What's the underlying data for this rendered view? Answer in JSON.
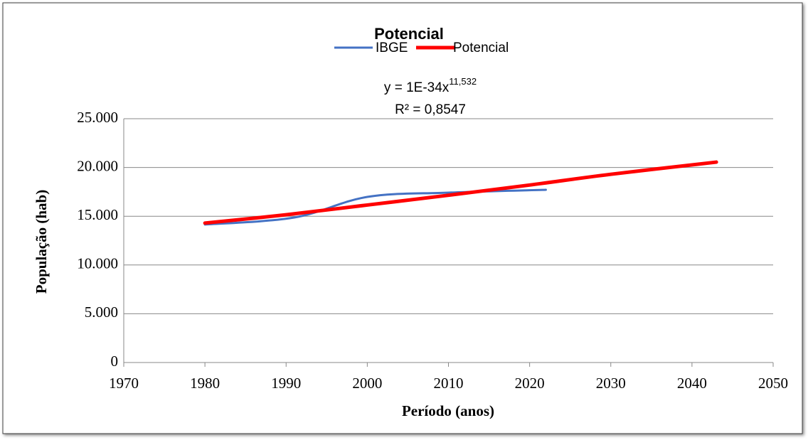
{
  "chart_data": {
    "type": "line",
    "title": "Potencial",
    "equation": {
      "base": "y = 1E-34x",
      "exponent": "11,532"
    },
    "r_squared": "R² = 0,8547",
    "x_label": "Período (anos)",
    "y_label": "População (hab)",
    "series": [
      {
        "name": "IBGE",
        "color": "#4472c4",
        "width": 3,
        "x": [
          1980,
          1991,
          2000,
          2010,
          2022
        ],
        "values": [
          14150,
          14870,
          16980,
          17420,
          17710
        ]
      },
      {
        "name": "Potencial",
        "color": "#ff0000",
        "width": 5,
        "x": [
          1980,
          1990,
          2000,
          2010,
          2020,
          2030,
          2043
        ],
        "values": [
          14300,
          15150,
          16150,
          17150,
          18200,
          19300,
          20550
        ]
      }
    ],
    "xlim": [
      1970,
      2050
    ],
    "xticks": [
      1970,
      1980,
      1990,
      2000,
      2010,
      2020,
      2030,
      2040,
      2050
    ],
    "ylim": [
      0,
      25000
    ],
    "yticks": [
      0,
      {
        "value": 5000,
        "label": "5.000"
      },
      {
        "value": 10000,
        "label": "10.000"
      },
      {
        "value": 15000,
        "label": "15.000"
      },
      {
        "value": 20000,
        "label": "20.000"
      },
      {
        "value": 25000,
        "label": "25.000"
      }
    ],
    "grid": true,
    "legend": "top"
  }
}
